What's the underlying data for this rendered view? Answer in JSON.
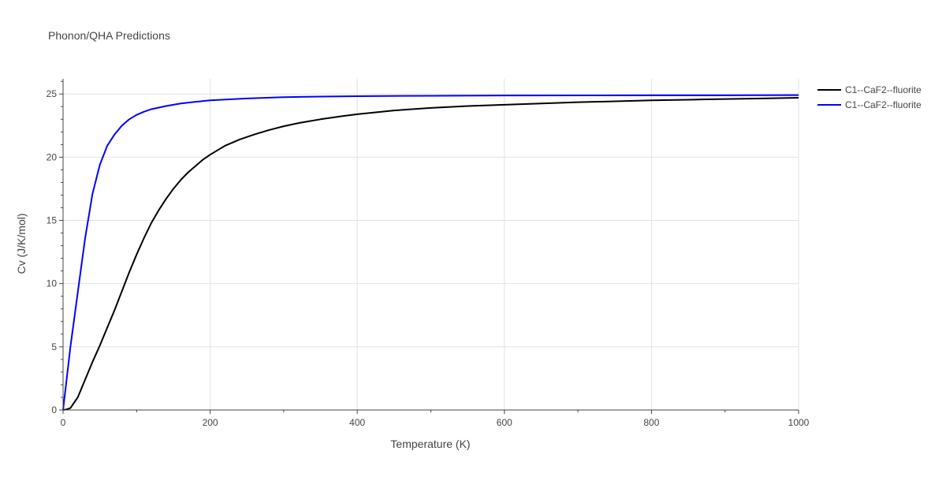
{
  "chart_data": {
    "type": "line",
    "title": "Phonon/QHA Predictions",
    "xlabel": "Temperature (K)",
    "ylabel": "Cv (J/K/mol)",
    "xlim": [
      0,
      1000
    ],
    "ylim": [
      0,
      26.2
    ],
    "xticks": [
      0,
      200,
      400,
      600,
      800,
      1000
    ],
    "yticks": [
      0,
      5,
      10,
      15,
      20,
      25
    ],
    "grid": true,
    "legend_position": "top-right",
    "colors": {
      "series_1": "#000000",
      "series_2": "#0000ff",
      "grid": "#e1e1e1",
      "axis_text": "#444444",
      "title_text": "#444444"
    },
    "series": [
      {
        "name": "C1--CaF2--fluorite",
        "color": "#000000",
        "x": [
          0,
          5,
          10,
          20,
          30,
          40,
          50,
          60,
          70,
          80,
          90,
          100,
          110,
          120,
          130,
          140,
          150,
          160,
          170,
          180,
          190,
          200,
          210,
          220,
          240,
          260,
          280,
          300,
          320,
          350,
          380,
          400,
          450,
          500,
          550,
          600,
          650,
          700,
          750,
          800,
          850,
          900,
          950,
          1000
        ],
        "y": [
          0,
          0.05,
          0.15,
          1.0,
          2.4,
          3.8,
          5.1,
          6.5,
          7.9,
          9.4,
          10.9,
          12.3,
          13.6,
          14.8,
          15.8,
          16.7,
          17.5,
          18.2,
          18.8,
          19.3,
          19.8,
          20.2,
          20.55,
          20.9,
          21.4,
          21.8,
          22.15,
          22.45,
          22.7,
          23.0,
          23.25,
          23.4,
          23.7,
          23.9,
          24.05,
          24.15,
          24.25,
          24.35,
          24.42,
          24.5,
          24.55,
          24.6,
          24.65,
          24.7
        ]
      },
      {
        "name": "C1--CaF2--fluorite",
        "color": "#0000ff",
        "x": [
          0,
          5,
          10,
          20,
          30,
          40,
          50,
          60,
          70,
          80,
          90,
          100,
          110,
          120,
          140,
          160,
          180,
          200,
          250,
          300,
          350,
          400,
          500,
          600,
          700,
          800,
          900,
          1000
        ],
        "y": [
          0,
          2.5,
          5.0,
          9.3,
          13.6,
          17.1,
          19.4,
          20.9,
          21.8,
          22.5,
          23.0,
          23.35,
          23.6,
          23.8,
          24.05,
          24.25,
          24.38,
          24.5,
          24.65,
          24.75,
          24.8,
          24.83,
          24.86,
          24.88,
          24.89,
          24.9,
          24.9,
          24.91
        ]
      }
    ]
  }
}
